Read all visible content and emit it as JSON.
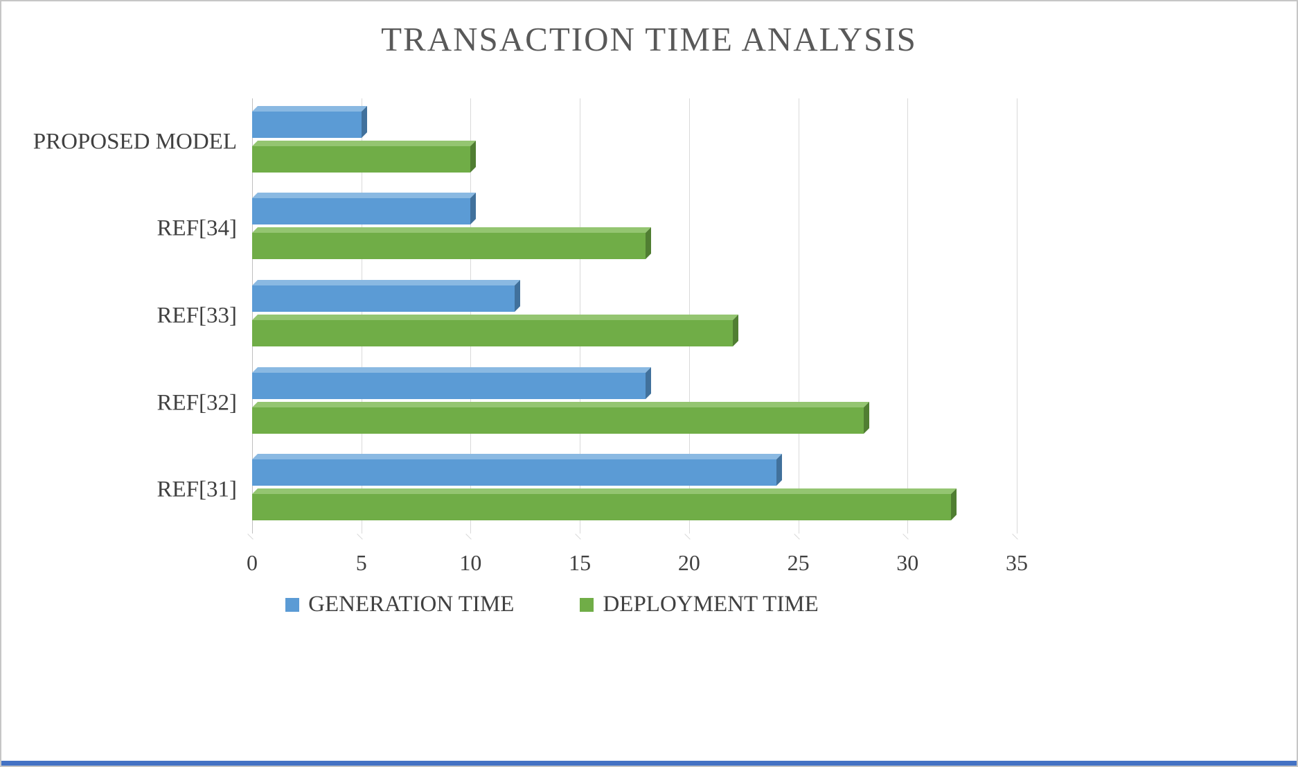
{
  "title": "TRANSACTION TIME ANALYSIS",
  "legend": {
    "generation_label": "GENERATION  TIME",
    "deployment_label": "DEPLOYMENT TIME"
  },
  "colors": {
    "title_text": "#595959",
    "axis_text": "#404040",
    "gridline": "#d9d9d9",
    "bottom_accent": "#4472c4",
    "series": [
      {
        "main": "#5b9bd5",
        "top": "#8ab9e2",
        "side": "#41719c"
      },
      {
        "main": "#70ad47",
        "top": "#94c571",
        "side": "#507e32"
      }
    ]
  },
  "chart_data": {
    "type": "bar",
    "orientation": "horizontal",
    "title": "TRANSACTION TIME ANALYSIS",
    "categories": [
      "PROPOSED MODEL",
      "REF[34]",
      "REF[33]",
      "REF[32]",
      "REF[31]"
    ],
    "series": [
      {
        "name": "GENERATION TIME",
        "color": "#5b9bd5",
        "values": [
          5,
          10,
          12,
          18,
          24
        ]
      },
      {
        "name": "DEPLOYMENT TIME",
        "color": "#70ad47",
        "values": [
          10,
          18,
          22,
          28,
          32
        ]
      }
    ],
    "xlim": [
      0,
      35
    ],
    "xticks": [
      0,
      5,
      10,
      15,
      20,
      25,
      30,
      35
    ],
    "grid": true,
    "legend_position": "bottom",
    "style": "3d"
  }
}
